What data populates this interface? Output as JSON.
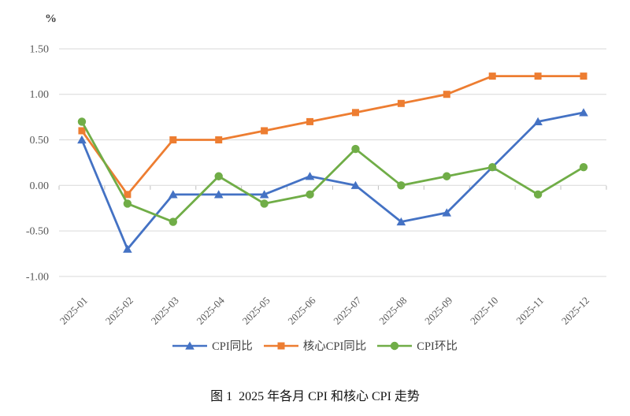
{
  "figure": {
    "unit_label": "%",
    "caption": "图 1  2025 年各月 CPI 和核心 CPI 走势"
  },
  "chart_data": {
    "type": "line",
    "title": "图 1  2025 年各月 CPI 和核心 CPI 走势",
    "xlabel": "",
    "ylabel": "%",
    "categories": [
      "2025-01",
      "2025-02",
      "2025-03",
      "2025-04",
      "2025-05",
      "2025-06",
      "2025-07",
      "2025-08",
      "2025-09",
      "2025-10",
      "2025-11",
      "2025-12"
    ],
    "series": [
      {
        "id": "cpi-yoy",
        "name": "CPI同比",
        "color": "#4472C4",
        "marker": "triangle",
        "values": [
          0.5,
          -0.7,
          -0.1,
          -0.1,
          -0.1,
          0.1,
          0.0,
          -0.4,
          -0.3,
          0.2,
          0.7,
          0.8
        ]
      },
      {
        "id": "core-cpi-yoy",
        "name": "核心CPI同比",
        "color": "#ED7D31",
        "marker": "square",
        "values": [
          0.6,
          -0.1,
          0.5,
          0.5,
          0.6,
          0.7,
          0.8,
          0.9,
          1.0,
          1.2,
          1.2,
          1.2
        ]
      },
      {
        "id": "cpi-mom",
        "name": "CPI环比",
        "color": "#70AD47",
        "marker": "circle",
        "values": [
          0.7,
          -0.2,
          -0.4,
          0.1,
          -0.2,
          -0.1,
          0.4,
          0.0,
          0.1,
          0.2,
          -0.1,
          0.2
        ]
      }
    ],
    "y_ticks": [
      1.5,
      1.0,
      0.5,
      0.0,
      -0.5,
      -1.0
    ],
    "y_tick_labels": [
      "1.50",
      "1.00",
      "0.50",
      "0.00",
      "-0.50",
      "-1.00"
    ],
    "ylim": [
      -1.0,
      1.5
    ],
    "grid": true,
    "legend_position": "bottom",
    "colors": {
      "grid": "#D9D9D9",
      "tick": "#BFBFBF",
      "axis_text": "#595959",
      "legend_text": "#404040"
    }
  }
}
